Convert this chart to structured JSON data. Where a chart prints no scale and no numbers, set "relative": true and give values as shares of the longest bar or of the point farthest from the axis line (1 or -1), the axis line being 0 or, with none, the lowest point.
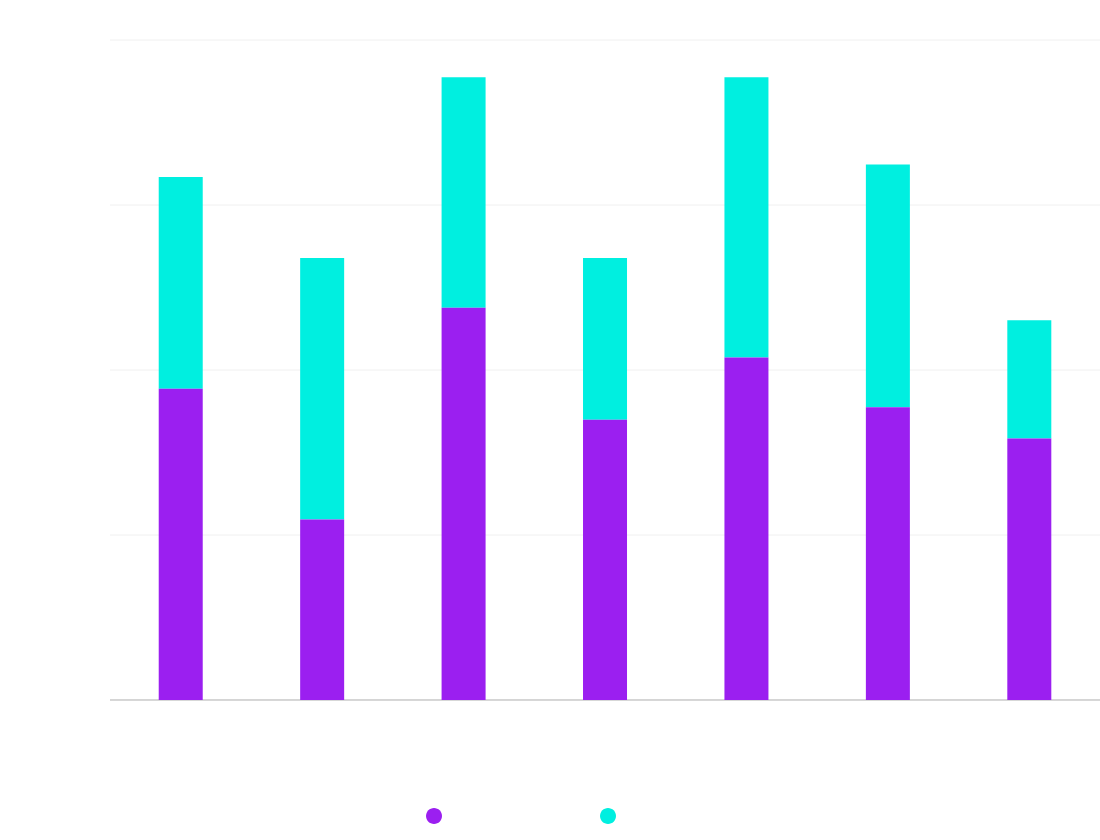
{
  "chart_data": {
    "type": "bar",
    "stacked": true,
    "relative": true,
    "grid": "y",
    "categories": [
      null,
      null,
      null,
      null,
      null,
      null,
      null
    ],
    "series": [
      {
        "color": "#9b1ff0",
        "values": [
          0.5,
          0.29,
          0.63,
          0.45,
          0.55,
          0.47,
          0.42
        ]
      },
      {
        "color": "#00efe0",
        "values": [
          0.34,
          0.42,
          0.37,
          0.26,
          0.45,
          0.39,
          0.19
        ]
      }
    ]
  }
}
